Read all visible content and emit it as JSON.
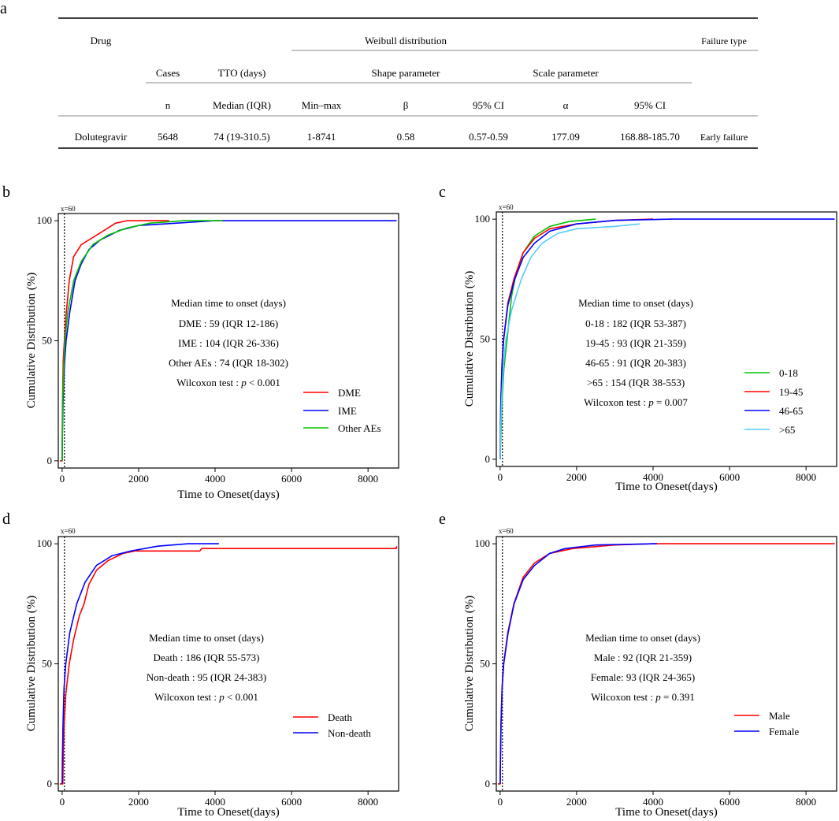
{
  "figure": {
    "table": {
      "panel_letter": "a",
      "headers": {
        "drug": "Drug",
        "weibull": "Weibull distribution",
        "failure_type": "Failure type",
        "cases": "Cases",
        "tto": "TTO (days)",
        "shape": "Shape parameter",
        "scale": "Scale parameter",
        "n": "n",
        "median_iqr": "Median (IQR)",
        "min_max": "Min–max",
        "beta": "β",
        "ci1": "95% CI",
        "alpha": "α",
        "ci2": "95% CI"
      },
      "row": {
        "drug": "Dolutegravir",
        "n": "5648",
        "median": "74 (19-310.5)",
        "min_max": "1-8741",
        "beta": "0.58",
        "beta_ci": "0.57-0.59",
        "alpha": "177.09",
        "alpha_ci": "168.88-185.70",
        "failure": "Early failure"
      }
    },
    "panels": [
      {
        "letter": "b",
        "annot_title": "Median time to onset (days)",
        "annot_lines": [
          "DME : 59 (IQR 12-186)",
          "IME : 104 (IQR 26-336)",
          "Other AEs : 74 (IQR 18-302)"
        ],
        "test_prefix": "Wilcoxon test : ",
        "test_p": "p",
        "test_value": " < 0.001"
      },
      {
        "letter": "c",
        "annot_title": "Median time to onset (days)",
        "annot_lines": [
          "0-18 : 182 (IQR 53-387)",
          "19-45 : 93 (IQR 21-359)",
          "46-65 : 91 (IQR 20-383)",
          ">65 : 154 (IQR 38-553)"
        ],
        "test_prefix": "Wilcoxon test : ",
        "test_p": "p",
        "test_value": " = 0.007"
      },
      {
        "letter": "d",
        "annot_title": "Median time to onset (days)",
        "annot_lines": [
          "Death : 186 (IQR 55-573)",
          "Non-death : 95 (IQR 24-383)"
        ],
        "test_prefix": "Wilcoxon test : ",
        "test_p": "p",
        "test_value": " < 0.001"
      },
      {
        "letter": "e",
        "annot_title": "Median time to onset (days)",
        "annot_lines": [
          "Male : 92 (IQR 21-359)",
          "Female: 93 (IQR 24-365)"
        ],
        "test_prefix": "Wilcoxon test : ",
        "test_p": "p",
        "test_value": " = 0.391"
      }
    ]
  },
  "chart_data": [
    {
      "type": "line",
      "panel": "b",
      "xlabel": "Time to Oneset(days)",
      "ylabel": "Cumulative Distribution (%)",
      "xlim": [
        -100,
        8800
      ],
      "ylim": [
        -3,
        103
      ],
      "xticks": [
        0,
        2000,
        4000,
        6000,
        8000
      ],
      "yticks": [
        0,
        50,
        100
      ],
      "vline": {
        "x": 60,
        "label": "x=60"
      },
      "series": [
        {
          "name": "DME",
          "color": "#ff0000",
          "points": [
            [
              -60,
              0
            ],
            [
              0,
              0
            ],
            [
              5,
              15
            ],
            [
              12,
              25
            ],
            [
              30,
              42
            ],
            [
              59,
              50
            ],
            [
              100,
              60
            ],
            [
              186,
              75
            ],
            [
              300,
              85
            ],
            [
              500,
              90
            ],
            [
              800,
              93
            ],
            [
              1000,
              95
            ],
            [
              1400,
              99
            ],
            [
              1700,
              100
            ],
            [
              2800,
              100
            ]
          ]
        },
        {
          "name": "IME",
          "color": "#0000ff",
          "points": [
            [
              0,
              0
            ],
            [
              8,
              10
            ],
            [
              26,
              25
            ],
            [
              60,
              40
            ],
            [
              104,
              50
            ],
            [
              200,
              62
            ],
            [
              336,
              75
            ],
            [
              500,
              82
            ],
            [
              700,
              88
            ],
            [
              1000,
              92
            ],
            [
              1500,
              96
            ],
            [
              2000,
              98
            ],
            [
              3000,
              99
            ],
            [
              4000,
              100
            ],
            [
              8750,
              100
            ]
          ]
        },
        {
          "name": "Other AEs",
          "color": "#00c000",
          "points": [
            [
              0,
              0
            ],
            [
              6,
              10
            ],
            [
              18,
              25
            ],
            [
              45,
              40
            ],
            [
              74,
              50
            ],
            [
              150,
              62
            ],
            [
              302,
              75
            ],
            [
              500,
              83
            ],
            [
              800,
              90
            ],
            [
              1200,
              94
            ],
            [
              1700,
              97
            ],
            [
              2300,
              99
            ],
            [
              3200,
              100
            ],
            [
              4200,
              100
            ]
          ]
        }
      ]
    },
    {
      "type": "line",
      "panel": "c",
      "xlabel": "Time to Oneset(days)",
      "ylabel": "Cumulative Distribution (%)",
      "xlim": [
        -100,
        8800
      ],
      "ylim": [
        -3,
        103
      ],
      "xticks": [
        0,
        2000,
        4000,
        6000,
        8000
      ],
      "yticks": [
        0,
        50,
        100
      ],
      "vline": {
        "x": 60,
        "label": "x=60"
      },
      "series": [
        {
          "name": "0-18",
          "color": "#00c000",
          "points": [
            [
              0,
              0
            ],
            [
              20,
              10
            ],
            [
              53,
              25
            ],
            [
              100,
              38
            ],
            [
              182,
              50
            ],
            [
              300,
              68
            ],
            [
              387,
              75
            ],
            [
              600,
              86
            ],
            [
              900,
              93
            ],
            [
              1300,
              97
            ],
            [
              1800,
              99
            ],
            [
              2500,
              100
            ]
          ]
        },
        {
          "name": "19-45",
          "color": "#ff0000",
          "points": [
            [
              0,
              0
            ],
            [
              7,
              10
            ],
            [
              21,
              25
            ],
            [
              50,
              40
            ],
            [
              93,
              50
            ],
            [
              200,
              65
            ],
            [
              359,
              75
            ],
            [
              600,
              86
            ],
            [
              900,
              92
            ],
            [
              1300,
              96
            ],
            [
              2000,
              98
            ],
            [
              3000,
              99.5
            ],
            [
              4000,
              100
            ]
          ]
        },
        {
          "name": "46-65",
          "color": "#0000ff",
          "points": [
            [
              0,
              0
            ],
            [
              6,
              10
            ],
            [
              20,
              25
            ],
            [
              50,
              40
            ],
            [
              91,
              50
            ],
            [
              200,
              64
            ],
            [
              383,
              75
            ],
            [
              600,
              84
            ],
            [
              900,
              90
            ],
            [
              1300,
              95
            ],
            [
              2000,
              98
            ],
            [
              3000,
              99.5
            ],
            [
              4500,
              100
            ],
            [
              8750,
              100
            ]
          ]
        },
        {
          "name": ">65",
          "color": "#55ccff",
          "points": [
            [
              0,
              0
            ],
            [
              12,
              10
            ],
            [
              38,
              25
            ],
            [
              90,
              40
            ],
            [
              154,
              50
            ],
            [
              300,
              62
            ],
            [
              553,
              75
            ],
            [
              800,
              84
            ],
            [
              1100,
              90
            ],
            [
              1500,
              94
            ],
            [
              2000,
              96
            ],
            [
              3000,
              97
            ],
            [
              3650,
              98
            ]
          ]
        }
      ]
    },
    {
      "type": "line",
      "panel": "d",
      "xlabel": "Time to Oneset(days)",
      "ylabel": "Cumulative Distribution (%)",
      "xlim": [
        -100,
        8800
      ],
      "ylim": [
        -3,
        103
      ],
      "xticks": [
        0,
        2000,
        4000,
        6000,
        8000
      ],
      "yticks": [
        0,
        50,
        100
      ],
      "vline": {
        "x": 60,
        "label": "x=60"
      },
      "series": [
        {
          "name": "Death",
          "color": "#ff0000",
          "points": [
            [
              -60,
              0
            ],
            [
              20,
              0
            ],
            [
              30,
              12
            ],
            [
              55,
              25
            ],
            [
              100,
              38
            ],
            [
              186,
              50
            ],
            [
              300,
              60
            ],
            [
              450,
              70
            ],
            [
              573,
              75
            ],
            [
              700,
              83
            ],
            [
              900,
              89
            ],
            [
              1200,
              93
            ],
            [
              1600,
              96
            ],
            [
              1900,
              97
            ],
            [
              3600,
              97
            ],
            [
              3650,
              98
            ],
            [
              8740,
              98
            ],
            [
              8750,
              99
            ]
          ]
        },
        {
          "name": "Non-death",
          "color": "#0000ff",
          "points": [
            [
              0,
              0
            ],
            [
              8,
              10
            ],
            [
              24,
              25
            ],
            [
              50,
              40
            ],
            [
              95,
              50
            ],
            [
              200,
              63
            ],
            [
              383,
              75
            ],
            [
              600,
              84
            ],
            [
              900,
              91
            ],
            [
              1300,
              95
            ],
            [
              1800,
              97
            ],
            [
              2500,
              99
            ],
            [
              3300,
              100
            ],
            [
              4100,
              100
            ]
          ]
        }
      ]
    },
    {
      "type": "line",
      "panel": "e",
      "xlabel": "Time to Oneset(days)",
      "ylabel": "Cumulative Distribution (%)",
      "xlim": [
        -100,
        8800
      ],
      "ylim": [
        -3,
        103
      ],
      "xticks": [
        0,
        2000,
        4000,
        6000,
        8000
      ],
      "yticks": [
        0,
        50,
        100
      ],
      "vline": {
        "x": 60,
        "label": "x=60"
      },
      "series": [
        {
          "name": "Male",
          "color": "#ff0000",
          "points": [
            [
              -60,
              0
            ],
            [
              0,
              0
            ],
            [
              8,
              10
            ],
            [
              21,
              25
            ],
            [
              50,
              40
            ],
            [
              92,
              50
            ],
            [
              200,
              63
            ],
            [
              359,
              75
            ],
            [
              600,
              86
            ],
            [
              900,
              92
            ],
            [
              1300,
              96
            ],
            [
              1900,
              98
            ],
            [
              3000,
              99.5
            ],
            [
              4000,
              100
            ],
            [
              8750,
              100
            ]
          ]
        },
        {
          "name": "Female",
          "color": "#0000ff",
          "points": [
            [
              0,
              0
            ],
            [
              9,
              10
            ],
            [
              24,
              25
            ],
            [
              52,
              40
            ],
            [
              93,
              50
            ],
            [
              210,
              63
            ],
            [
              365,
              75
            ],
            [
              600,
              85
            ],
            [
              900,
              91
            ],
            [
              1300,
              96
            ],
            [
              1700,
              98
            ],
            [
              2500,
              99.5
            ],
            [
              4100,
              100
            ]
          ]
        }
      ]
    }
  ]
}
